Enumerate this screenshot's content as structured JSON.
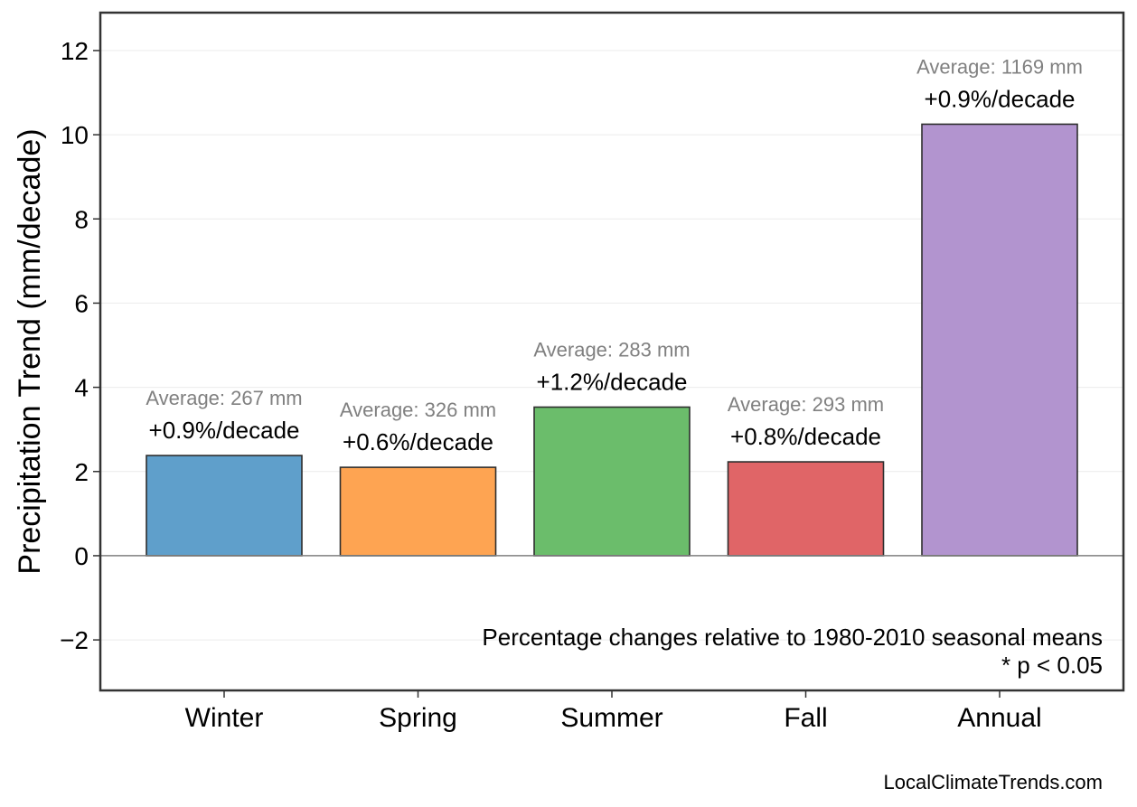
{
  "chart_data": {
    "type": "bar",
    "title": "",
    "xlabel": "",
    "ylabel": "Precipitation Trend (mm/decade)",
    "ylim": [
      -3.2,
      12.9
    ],
    "yticks": [
      -2,
      0,
      2,
      4,
      6,
      8,
      10,
      12
    ],
    "ytick_labels": [
      "−2",
      "0",
      "2",
      "4",
      "6",
      "8",
      "10",
      "12"
    ],
    "grid": true,
    "categories": [
      "Winter",
      "Spring",
      "Summer",
      "Fall",
      "Annual"
    ],
    "values": [
      2.38,
      2.1,
      3.53,
      2.23,
      10.25
    ],
    "colors": [
      "#5f9fcb",
      "#fea452",
      "#6bbd6b",
      "#e06567",
      "#b294cf"
    ],
    "percent_labels": [
      "+0.9%/decade",
      "+0.6%/decade",
      "+1.2%/decade",
      "+0.8%/decade",
      "+0.9%/decade"
    ],
    "average_labels": [
      "Average: 267 mm",
      "Average: 326 mm",
      "Average: 283 mm",
      "Average: 293 mm",
      "Average: 1169 mm"
    ],
    "notes": [
      "Percentage changes relative to 1980-2010 seasonal means",
      "* p < 0.05"
    ],
    "source": "LocalClimateTrends.com"
  }
}
